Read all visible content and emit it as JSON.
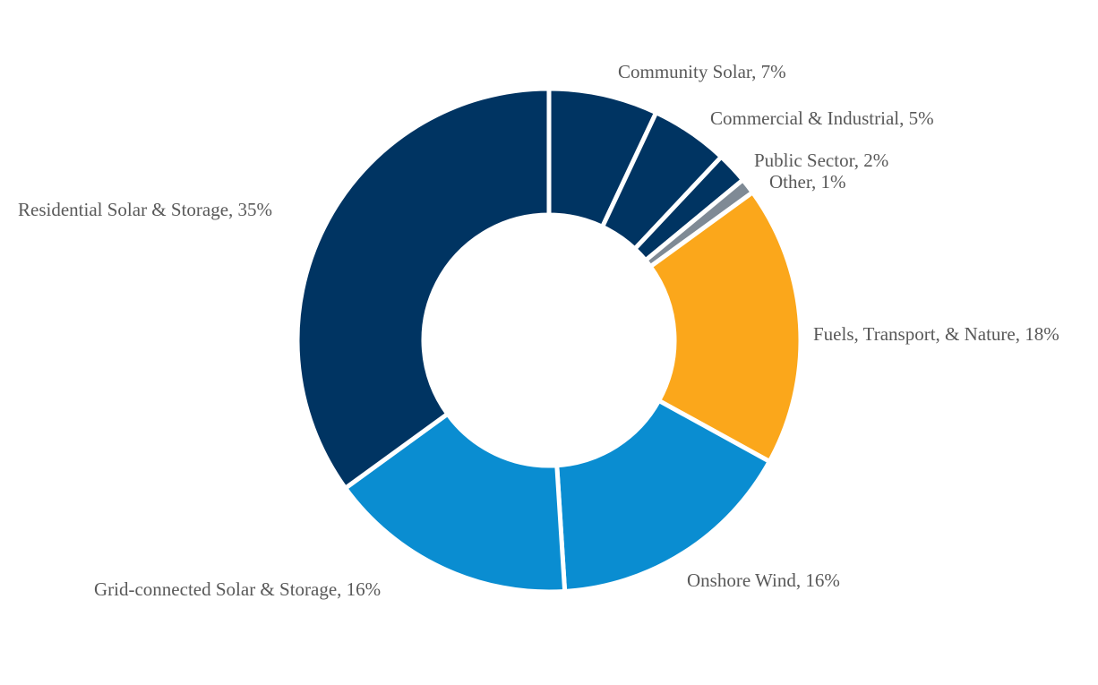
{
  "chart_data": {
    "type": "pie",
    "donut": true,
    "title": "",
    "label_color": "#595959",
    "slices": [
      {
        "label": "Community Solar, 7%",
        "value": 7,
        "color": "#003462"
      },
      {
        "label": "Commercial & Industrial, 5%",
        "value": 5,
        "color": "#003462"
      },
      {
        "label": "Public Sector, 2%",
        "value": 2,
        "color": "#003462"
      },
      {
        "label": "Other, 1%",
        "value": 1,
        "color": "#7f8a95"
      },
      {
        "label": "Fuels, Transport, & Nature, 18%",
        "value": 18,
        "color": "#fba71b"
      },
      {
        "label": "Onshore Wind, 16%",
        "value": 16,
        "color": "#0a8dd1"
      },
      {
        "label": "Grid-connected Solar & Storage, 16%",
        "value": 16,
        "color": "#0a8dd1"
      },
      {
        "label": "Residential Solar & Storage, 35%",
        "value": 35,
        "color": "#003462"
      }
    ]
  }
}
